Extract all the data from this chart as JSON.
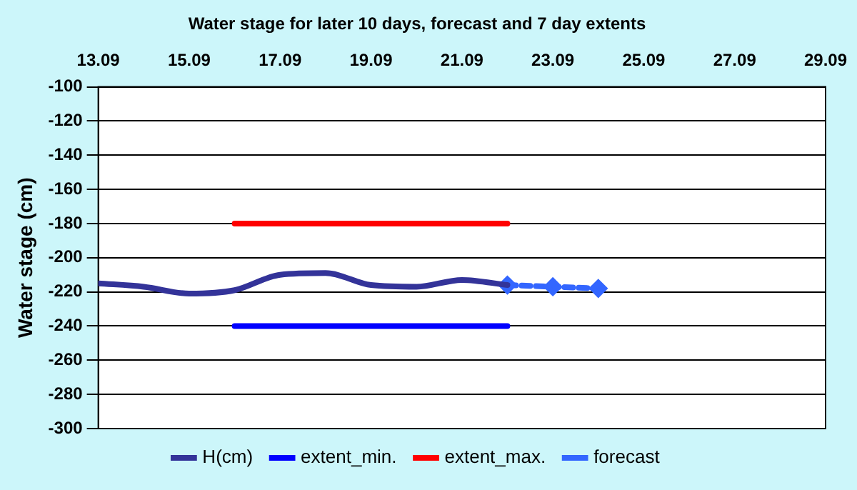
{
  "chart_data": {
    "type": "line",
    "title": "Water stage for later 10 days, forecast and 7 day extents",
    "ylabel": "Water stage (cm)",
    "xlim": [
      "--09-13",
      "--09-29"
    ],
    "xticks": [
      {
        "value": "--09-13",
        "label": "13.09"
      },
      {
        "value": "--09-15",
        "label": "15.09"
      },
      {
        "value": "--09-17",
        "label": "17.09"
      },
      {
        "value": "--09-19",
        "label": "19.09"
      },
      {
        "value": "--09-21",
        "label": "21.09"
      },
      {
        "value": "--09-23",
        "label": "23.09"
      },
      {
        "value": "--09-25",
        "label": "25.09"
      },
      {
        "value": "--09-27",
        "label": "27.09"
      },
      {
        "value": "--09-29",
        "label": "29.09"
      }
    ],
    "ylim": [
      -300,
      -100
    ],
    "yticks": [
      -300,
      -280,
      -260,
      -240,
      -220,
      -200,
      -180,
      -160,
      -140,
      -120,
      -100
    ],
    "grid": "y",
    "legend": "bottom",
    "series": [
      {
        "name": "H(cm)",
        "color": "#333399",
        "x": [
          "--09-13",
          "--09-14",
          "--09-15",
          "--09-16",
          "--09-17",
          "--09-18",
          "--09-19",
          "--09-20",
          "--09-21",
          "--09-22"
        ],
        "values": [
          -215,
          -217,
          -221,
          -219,
          -210,
          -209,
          -216,
          -217,
          -213,
          -216
        ],
        "marker": "none",
        "line_style": "solid"
      },
      {
        "name": "extent_min.",
        "color": "#0000ff",
        "x": [
          "--09-16",
          "--09-22"
        ],
        "values": [
          -240,
          -240
        ],
        "marker": "none",
        "line_style": "solid"
      },
      {
        "name": "extent_max.",
        "color": "#ff0000",
        "x": [
          "--09-16",
          "--09-22"
        ],
        "values": [
          -180,
          -180
        ],
        "marker": "none",
        "line_style": "solid"
      },
      {
        "name": "forecast",
        "color": "#3366ff",
        "x": [
          "--09-22",
          "--09-23",
          "--09-24"
        ],
        "values": [
          -216,
          -217,
          -218
        ],
        "marker": "diamond",
        "line_style": "dashed"
      }
    ]
  }
}
